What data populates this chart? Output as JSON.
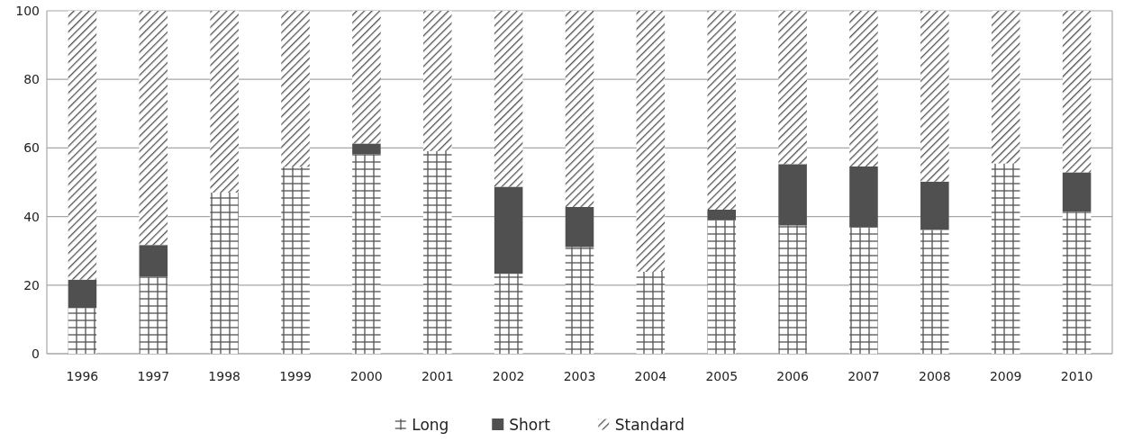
{
  "chart_data": {
    "type": "bar",
    "stacked": true,
    "categories": [
      "1996",
      "1997",
      "1998",
      "1999",
      "2000",
      "2001",
      "2002",
      "2003",
      "2004",
      "2005",
      "2006",
      "2007",
      "2008",
      "2009",
      "2010"
    ],
    "series": [
      {
        "name": "Long",
        "color": "#505050",
        "values": [
          13.3,
          22.4,
          47.0,
          54.5,
          58.1,
          59.1,
          23.3,
          31.1,
          23.9,
          38.9,
          37.4,
          36.8,
          36.1,
          55.5,
          41.4
        ]
      },
      {
        "name": "Short",
        "color": "#505050",
        "values": [
          8.3,
          9.3,
          0,
          0,
          3.2,
          0,
          25.4,
          11.7,
          0,
          3.1,
          17.9,
          17.8,
          14.1,
          0,
          11.5
        ]
      },
      {
        "name": "Standard",
        "color": "#505050",
        "values": [
          78.4,
          68.3,
          53.0,
          45.5,
          38.7,
          40.9,
          51.3,
          57.2,
          76.1,
          58.0,
          44.7,
          45.4,
          49.8,
          44.5,
          47.1
        ]
      }
    ],
    "ylim": [
      0,
      100
    ],
    "yticks": [
      0,
      20,
      40,
      60,
      80,
      100
    ],
    "grid": "y",
    "legend": "bottom"
  }
}
